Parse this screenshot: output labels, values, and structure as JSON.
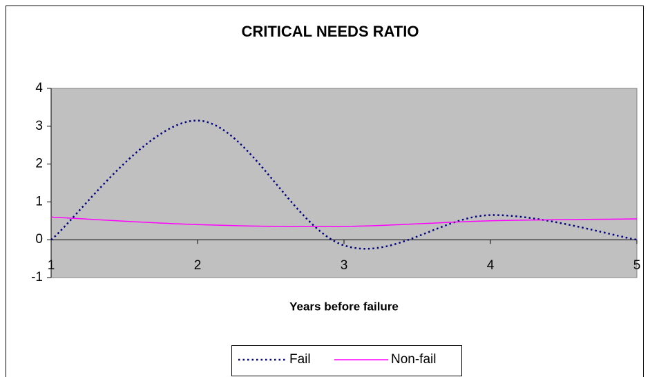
{
  "chart_data": {
    "type": "line",
    "title": "CRITICAL NEEDS RATIO",
    "x_label": "Years before failure",
    "x": [
      1,
      2,
      3,
      4,
      5
    ],
    "series": [
      {
        "name": "Fail",
        "color": "#000080",
        "dashed": true,
        "values": [
          0,
          3.15,
          -0.15,
          0.65,
          0
        ]
      },
      {
        "name": "Non-fail",
        "color": "#ff00ff",
        "dashed": false,
        "values": [
          0.6,
          0.4,
          0.35,
          0.5,
          0.55
        ]
      }
    ],
    "xlim": [
      1,
      5
    ],
    "xticks": [
      1,
      2,
      3,
      4,
      5
    ],
    "ylim": [
      -1,
      4
    ],
    "yticks": [
      -1,
      0,
      1,
      2,
      3,
      4
    ],
    "smooth": true,
    "legend": "bottom",
    "plot_background": "#c0c0c0"
  }
}
